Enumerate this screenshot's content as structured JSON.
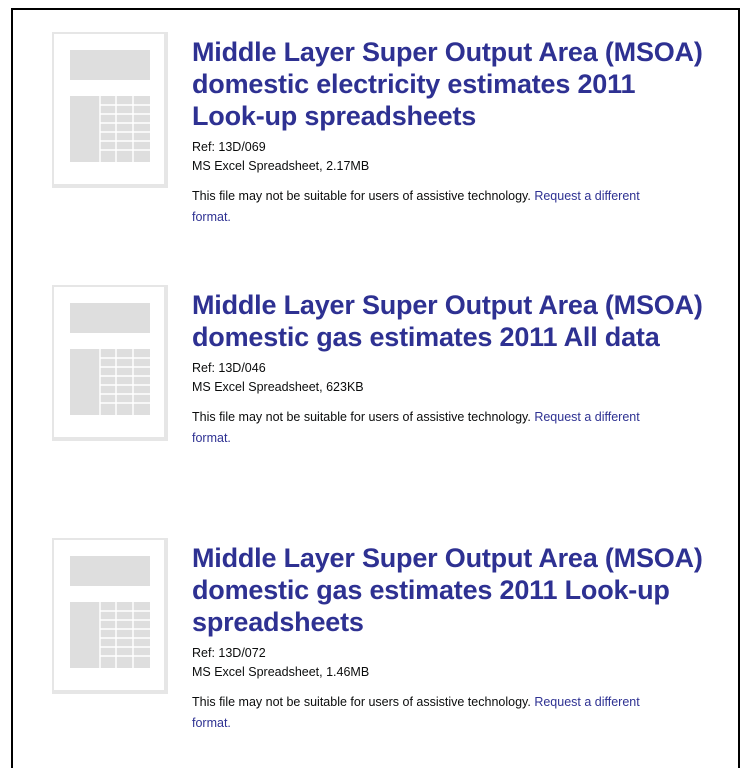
{
  "items": [
    {
      "title": "Middle Layer Super Output Area (MSOA) domestic electricity estimates 2011 Look-up spreadsheets",
      "ref": "Ref: 13D/069",
      "file": "MS Excel Spreadsheet, 2.17MB",
      "notice": "This file may not be suitable for users of assistive technology.",
      "link": "Request a different format."
    },
    {
      "title": "Middle Layer Super Output Area (MSOA) domestic gas estimates 2011 All data",
      "ref": "Ref: 13D/046",
      "file": "MS Excel Spreadsheet, 623KB",
      "notice": "This file may not be suitable for users of assistive technology.",
      "link": "Request a different format."
    },
    {
      "title": "Middle Layer Super Output Area (MSOA) domestic gas estimates 2011 Look-up spreadsheets",
      "ref": "Ref: 13D/072",
      "file": "MS Excel Spreadsheet, 1.46MB",
      "notice": "This file may not be suitable for users of assistive technology.",
      "link": "Request a different format."
    }
  ]
}
